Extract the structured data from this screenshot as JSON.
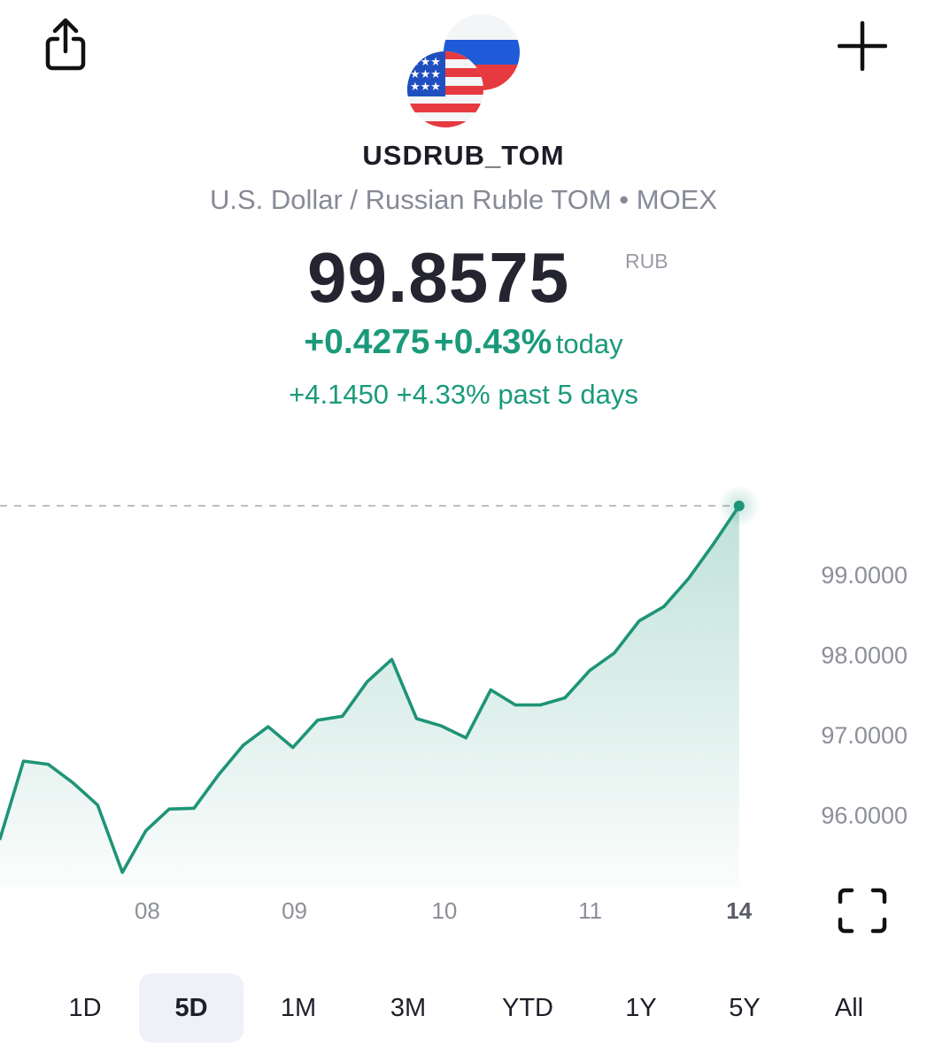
{
  "header": {
    "ticker": "USDRUB_TOM",
    "full_name": "U.S. Dollar / Russian Ruble TOM",
    "exchange": "MOEX",
    "separator": "•"
  },
  "quote": {
    "price": "99.8575",
    "currency": "RUB",
    "change_today": "+0.4275",
    "change_today_pct": "+0.43%",
    "today_label": "today",
    "change_5d": "+4.1450",
    "change_5d_pct": "+4.33%",
    "period_label": "past 5 days"
  },
  "icons": {
    "share": "share-icon",
    "add": "plus-icon",
    "fullscreen": "fullscreen-icon",
    "flag_us": "us-flag-icon",
    "flag_ru": "ru-flag-icon"
  },
  "colors": {
    "positive": "#1a9a7a",
    "line": "#1e9478"
  },
  "periods": {
    "items": [
      "1D",
      "5D",
      "1M",
      "3M",
      "YTD",
      "1Y",
      "5Y",
      "All"
    ],
    "selected": "5D"
  },
  "chart_data": {
    "type": "area",
    "x_tick_labels": [
      "08",
      "09",
      "10",
      "11",
      "14"
    ],
    "x_tick_bold": "14",
    "y_tick_labels": [
      "99.0000",
      "98.0000",
      "97.0000",
      "96.0000"
    ],
    "y_ticks": [
      99,
      98,
      97,
      96
    ],
    "ylim": [
      95.1,
      100.45
    ],
    "xlim": [
      0,
      28.5
    ],
    "x_tick_positions": [
      5.66,
      11.31,
      17.07,
      22.67,
      28.39
    ],
    "reference_line": 99.8575,
    "series": [
      {
        "x": [
          0,
          0.9,
          1.85,
          2.8,
          3.75,
          4.7,
          5.6,
          6.5,
          7.45,
          8.4,
          9.35,
          10.3,
          11.25,
          12.2,
          13.15,
          14.1,
          15.05,
          16.0,
          16.95,
          17.9,
          18.85,
          19.8,
          20.75,
          21.7,
          22.65,
          23.6,
          24.55,
          25.5,
          26.45,
          27.4,
          28.39
        ],
        "y": [
          95.7,
          96.67,
          96.63,
          96.4,
          96.12,
          95.28,
          95.8,
          96.07,
          96.08,
          96.5,
          96.87,
          97.1,
          96.84,
          97.18,
          97.23,
          97.66,
          97.94,
          97.2,
          97.11,
          96.96,
          97.56,
          97.37,
          97.37,
          97.46,
          97.8,
          98.02,
          98.42,
          98.6,
          98.95,
          99.38,
          99.8575
        ]
      }
    ]
  }
}
